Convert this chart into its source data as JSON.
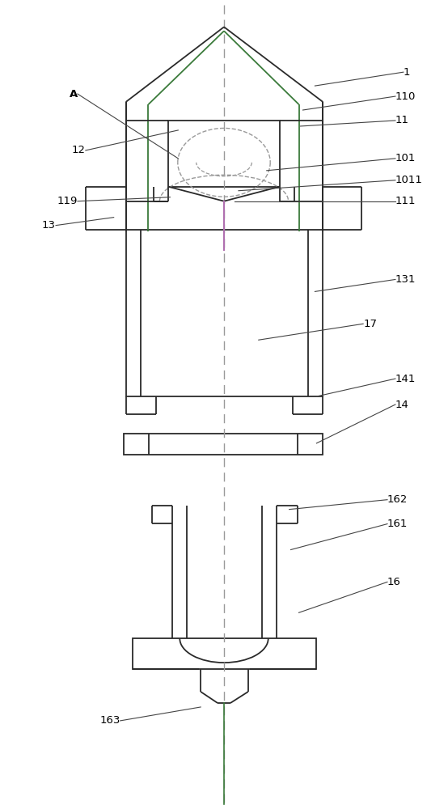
{
  "fig_width": 5.54,
  "fig_height": 10.0,
  "dpi": 100,
  "bg_color": "#ffffff",
  "line_color": "#2a2a2a",
  "dash_color": "#999999",
  "green_color": "#3a7a3a",
  "purple_color": "#b070b0",
  "ann_color": "#444444"
}
